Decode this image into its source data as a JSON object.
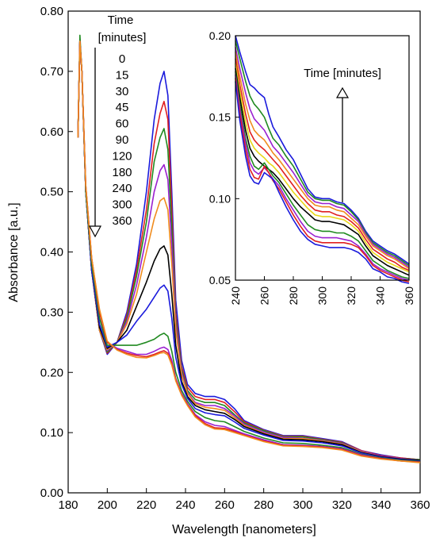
{
  "chart_data": [
    {
      "type": "line",
      "title": "",
      "xlabel": "Wavelength  [nanometers]",
      "ylabel": "Absorbance [a.u.]",
      "xlim": [
        180,
        360
      ],
      "ylim": [
        0.0,
        0.8
      ],
      "xticks": [
        "180",
        "200",
        "220",
        "240",
        "260",
        "280",
        "300",
        "320",
        "340",
        "360"
      ],
      "yticks": [
        "0.00",
        "0.10",
        "0.20",
        "0.30",
        "0.40",
        "0.50",
        "0.60",
        "0.70",
        "0.80"
      ],
      "grid": false,
      "legend": {
        "title_line1": "Time",
        "title_line2": "[minutes]",
        "entries": [
          "0",
          "15",
          "30",
          "45",
          "60",
          "90",
          "120",
          "180",
          "240",
          "300",
          "360"
        ],
        "placement": "top-left, with downward arrow"
      },
      "x": [
        185,
        186,
        187,
        189,
        192,
        196,
        200,
        205,
        210,
        215,
        220,
        224,
        227,
        229,
        231,
        233,
        235,
        238,
        241,
        245,
        250,
        255,
        260,
        265,
        270,
        280,
        290,
        300,
        310,
        320,
        330,
        340,
        350,
        360
      ],
      "series": [
        {
          "name": "0",
          "color": "#1a1adc",
          "values": [
            0.59,
            0.75,
            0.7,
            0.5,
            0.37,
            0.27,
            0.23,
            0.25,
            0.3,
            0.38,
            0.5,
            0.62,
            0.68,
            0.7,
            0.66,
            0.5,
            0.32,
            0.22,
            0.18,
            0.165,
            0.16,
            0.16,
            0.155,
            0.14,
            0.12,
            0.105,
            0.095,
            0.095,
            0.09,
            0.085,
            0.07,
            0.063,
            0.058,
            0.055
          ]
        },
        {
          "name": "15",
          "color": "#e02020",
          "values": [
            0.59,
            0.75,
            0.7,
            0.5,
            0.37,
            0.27,
            0.232,
            0.25,
            0.295,
            0.37,
            0.47,
            0.58,
            0.63,
            0.65,
            0.62,
            0.47,
            0.3,
            0.21,
            0.175,
            0.16,
            0.155,
            0.155,
            0.15,
            0.135,
            0.118,
            0.104,
            0.094,
            0.094,
            0.089,
            0.084,
            0.07,
            0.062,
            0.058,
            0.055
          ]
        },
        {
          "name": "30",
          "color": "#208a20",
          "values": [
            0.59,
            0.76,
            0.7,
            0.5,
            0.37,
            0.27,
            0.234,
            0.25,
            0.29,
            0.36,
            0.45,
            0.55,
            0.59,
            0.605,
            0.57,
            0.44,
            0.29,
            0.205,
            0.17,
            0.155,
            0.15,
            0.15,
            0.145,
            0.13,
            0.116,
            0.103,
            0.093,
            0.093,
            0.088,
            0.083,
            0.069,
            0.061,
            0.057,
            0.055
          ]
        },
        {
          "name": "45",
          "color": "#9a20d0",
          "values": [
            0.59,
            0.75,
            0.7,
            0.5,
            0.37,
            0.27,
            0.236,
            0.25,
            0.285,
            0.345,
            0.425,
            0.5,
            0.535,
            0.545,
            0.52,
            0.41,
            0.28,
            0.2,
            0.167,
            0.15,
            0.145,
            0.145,
            0.14,
            0.128,
            0.114,
            0.101,
            0.092,
            0.091,
            0.087,
            0.082,
            0.069,
            0.061,
            0.057,
            0.054
          ]
        },
        {
          "name": "60",
          "color": "#f08c1e",
          "values": [
            0.59,
            0.75,
            0.7,
            0.5,
            0.37,
            0.27,
            0.238,
            0.25,
            0.28,
            0.33,
            0.4,
            0.455,
            0.485,
            0.49,
            0.47,
            0.38,
            0.27,
            0.195,
            0.165,
            0.148,
            0.142,
            0.14,
            0.137,
            0.125,
            0.112,
            0.099,
            0.09,
            0.09,
            0.086,
            0.081,
            0.068,
            0.06,
            0.056,
            0.054
          ]
        },
        {
          "name": "90",
          "color": "#000000",
          "values": [
            0.59,
            0.75,
            0.7,
            0.5,
            0.37,
            0.275,
            0.24,
            0.25,
            0.27,
            0.31,
            0.35,
            0.385,
            0.405,
            0.41,
            0.395,
            0.33,
            0.245,
            0.185,
            0.16,
            0.145,
            0.138,
            0.135,
            0.132,
            0.122,
            0.11,
            0.098,
            0.089,
            0.088,
            0.085,
            0.08,
            0.067,
            0.06,
            0.056,
            0.054
          ]
        },
        {
          "name": "120",
          "color": "#1a1adc",
          "values": [
            0.59,
            0.75,
            0.7,
            0.5,
            0.37,
            0.28,
            0.242,
            0.25,
            0.262,
            0.285,
            0.305,
            0.325,
            0.34,
            0.345,
            0.335,
            0.29,
            0.225,
            0.18,
            0.157,
            0.14,
            0.133,
            0.13,
            0.128,
            0.118,
            0.107,
            0.096,
            0.087,
            0.086,
            0.083,
            0.078,
            0.066,
            0.059,
            0.055,
            0.053
          ]
        },
        {
          "name": "180",
          "color": "#208a20",
          "values": [
            0.59,
            0.75,
            0.7,
            0.5,
            0.38,
            0.29,
            0.245,
            0.245,
            0.245,
            0.245,
            0.25,
            0.255,
            0.262,
            0.265,
            0.26,
            0.235,
            0.2,
            0.17,
            0.152,
            0.135,
            0.125,
            0.12,
            0.118,
            0.11,
            0.102,
            0.091,
            0.083,
            0.082,
            0.079,
            0.075,
            0.064,
            0.058,
            0.054,
            0.052
          ]
        },
        {
          "name": "240",
          "color": "#9a20d0",
          "values": [
            0.59,
            0.75,
            0.7,
            0.51,
            0.39,
            0.3,
            0.25,
            0.24,
            0.235,
            0.23,
            0.23,
            0.235,
            0.24,
            0.242,
            0.238,
            0.22,
            0.19,
            0.165,
            0.148,
            0.13,
            0.118,
            0.112,
            0.11,
            0.104,
            0.098,
            0.088,
            0.08,
            0.079,
            0.077,
            0.073,
            0.063,
            0.057,
            0.053,
            0.051
          ]
        },
        {
          "name": "300",
          "color": "#e02020",
          "values": [
            0.59,
            0.75,
            0.7,
            0.51,
            0.39,
            0.3,
            0.25,
            0.238,
            0.232,
            0.228,
            0.226,
            0.23,
            0.234,
            0.236,
            0.232,
            0.215,
            0.188,
            0.163,
            0.146,
            0.128,
            0.115,
            0.108,
            0.107,
            0.102,
            0.096,
            0.086,
            0.079,
            0.078,
            0.076,
            0.072,
            0.062,
            0.057,
            0.053,
            0.051
          ]
        },
        {
          "name": "360",
          "color": "#f08c1e",
          "values": [
            0.59,
            0.75,
            0.7,
            0.51,
            0.39,
            0.305,
            0.252,
            0.237,
            0.23,
            0.225,
            0.224,
            0.228,
            0.232,
            0.233,
            0.229,
            0.212,
            0.186,
            0.162,
            0.145,
            0.126,
            0.113,
            0.106,
            0.105,
            0.1,
            0.095,
            0.085,
            0.078,
            0.077,
            0.075,
            0.071,
            0.061,
            0.056,
            0.053,
            0.05
          ]
        }
      ]
    },
    {
      "type": "line",
      "title": "",
      "xlabel": "",
      "ylabel": "",
      "xlim": [
        240,
        360
      ],
      "ylim": [
        0.05,
        0.2
      ],
      "xticks": [
        "240",
        "260",
        "280",
        "300",
        "320",
        "340",
        "360"
      ],
      "yticks": [
        "0.05",
        "0.10",
        "0.15",
        "0.20"
      ],
      "annotation": "Time [minutes]",
      "x": [
        240,
        243,
        247,
        250,
        253,
        256,
        260,
        263,
        266,
        270,
        275,
        280,
        285,
        290,
        295,
        300,
        305,
        310,
        315,
        320,
        325,
        330,
        335,
        340,
        345,
        350,
        355,
        360
      ],
      "series": [
        {
          "color": "#1a1adc",
          "values": [
            0.2,
            0.19,
            0.178,
            0.17,
            0.168,
            0.165,
            0.162,
            0.152,
            0.144,
            0.138,
            0.13,
            0.124,
            0.115,
            0.106,
            0.101,
            0.1,
            0.1,
            0.098,
            0.097,
            0.093,
            0.088,
            0.08,
            0.074,
            0.071,
            0.068,
            0.066,
            0.063,
            0.06
          ]
        },
        {
          "color": "#208a20",
          "values": [
            0.197,
            0.186,
            0.172,
            0.163,
            0.158,
            0.155,
            0.15,
            0.143,
            0.137,
            0.133,
            0.126,
            0.12,
            0.112,
            0.104,
            0.1,
            0.099,
            0.099,
            0.097,
            0.096,
            0.092,
            0.087,
            0.079,
            0.073,
            0.07,
            0.067,
            0.065,
            0.062,
            0.059
          ]
        },
        {
          "color": "#9a20d0",
          "values": [
            0.193,
            0.18,
            0.165,
            0.155,
            0.149,
            0.146,
            0.142,
            0.137,
            0.132,
            0.128,
            0.122,
            0.116,
            0.109,
            0.102,
            0.098,
            0.097,
            0.097,
            0.095,
            0.094,
            0.09,
            0.086,
            0.078,
            0.072,
            0.069,
            0.066,
            0.064,
            0.061,
            0.058
          ]
        },
        {
          "color": "#f08c1e",
          "values": [
            0.19,
            0.175,
            0.158,
            0.148,
            0.142,
            0.139,
            0.136,
            0.132,
            0.128,
            0.124,
            0.118,
            0.112,
            0.106,
            0.1,
            0.096,
            0.095,
            0.095,
            0.093,
            0.092,
            0.088,
            0.084,
            0.077,
            0.071,
            0.068,
            0.065,
            0.063,
            0.06,
            0.057
          ]
        },
        {
          "color": "#e02020",
          "values": [
            0.186,
            0.17,
            0.152,
            0.141,
            0.136,
            0.133,
            0.13,
            0.127,
            0.124,
            0.12,
            0.114,
            0.108,
            0.102,
            0.097,
            0.093,
            0.092,
            0.092,
            0.09,
            0.089,
            0.086,
            0.082,
            0.075,
            0.069,
            0.066,
            0.063,
            0.061,
            0.058,
            0.056
          ]
        },
        {
          "color": "#e8d81a",
          "values": [
            0.183,
            0.166,
            0.147,
            0.136,
            0.131,
            0.128,
            0.125,
            0.122,
            0.12,
            0.116,
            0.11,
            0.104,
            0.099,
            0.094,
            0.09,
            0.089,
            0.089,
            0.088,
            0.087,
            0.084,
            0.08,
            0.073,
            0.067,
            0.064,
            0.061,
            0.059,
            0.057,
            0.055
          ]
        },
        {
          "color": "#000000",
          "values": [
            0.18,
            0.162,
            0.142,
            0.131,
            0.126,
            0.123,
            0.12,
            0.118,
            0.116,
            0.112,
            0.106,
            0.1,
            0.095,
            0.091,
            0.087,
            0.086,
            0.086,
            0.085,
            0.084,
            0.081,
            0.078,
            0.071,
            0.065,
            0.062,
            0.059,
            0.057,
            0.055,
            0.053
          ]
        },
        {
          "color": "#208a20",
          "values": [
            0.178,
            0.158,
            0.137,
            0.126,
            0.12,
            0.118,
            0.122,
            0.118,
            0.114,
            0.11,
            0.103,
            0.096,
            0.09,
            0.084,
            0.081,
            0.08,
            0.08,
            0.079,
            0.079,
            0.077,
            0.074,
            0.068,
            0.062,
            0.059,
            0.056,
            0.054,
            0.052,
            0.051
          ]
        },
        {
          "color": "#9a20d0",
          "values": [
            0.176,
            0.155,
            0.134,
            0.122,
            0.117,
            0.115,
            0.119,
            0.116,
            0.112,
            0.108,
            0.1,
            0.093,
            0.086,
            0.08,
            0.077,
            0.076,
            0.076,
            0.076,
            0.075,
            0.074,
            0.071,
            0.066,
            0.06,
            0.057,
            0.055,
            0.053,
            0.051,
            0.05
          ]
        },
        {
          "color": "#e02020",
          "values": [
            0.174,
            0.152,
            0.13,
            0.118,
            0.113,
            0.112,
            0.12,
            0.116,
            0.111,
            0.106,
            0.098,
            0.09,
            0.083,
            0.077,
            0.074,
            0.073,
            0.073,
            0.073,
            0.073,
            0.072,
            0.07,
            0.065,
            0.059,
            0.056,
            0.054,
            0.052,
            0.05,
            0.049
          ]
        },
        {
          "color": "#1a1adc",
          "values": [
            0.172,
            0.148,
            0.126,
            0.114,
            0.11,
            0.109,
            0.116,
            0.114,
            0.112,
            0.104,
            0.095,
            0.087,
            0.08,
            0.075,
            0.072,
            0.071,
            0.07,
            0.07,
            0.07,
            0.069,
            0.067,
            0.063,
            0.057,
            0.055,
            0.052,
            0.051,
            0.049,
            0.048
          ]
        }
      ]
    }
  ]
}
